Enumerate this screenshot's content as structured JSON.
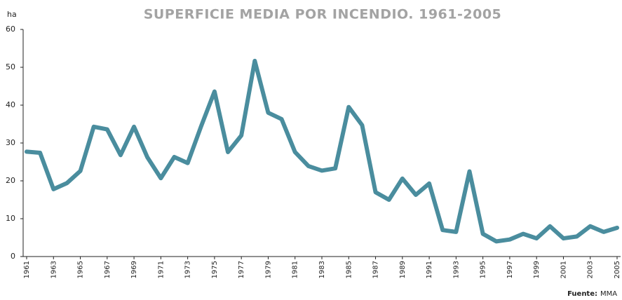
{
  "chart_data": {
    "type": "line",
    "title": "SUPERFICIE MEDIA POR INCENDIO. 1961-2005",
    "y_label": "ha",
    "source_label": "Fuente:",
    "source": "MMA",
    "x": [
      1961,
      1962,
      1963,
      1964,
      1965,
      1966,
      1967,
      1968,
      1969,
      1970,
      1971,
      1972,
      1973,
      1974,
      1975,
      1976,
      1977,
      1978,
      1979,
      1980,
      1981,
      1982,
      1983,
      1984,
      1985,
      1986,
      1987,
      1988,
      1989,
      1990,
      1991,
      1992,
      1993,
      1994,
      1995,
      1996,
      1997,
      1998,
      1999,
      2000,
      2001,
      2002,
      2003,
      2004,
      2005
    ],
    "series": [
      {
        "name": "ha",
        "color": "#4a8d9e",
        "values": [
          27.7,
          27.4,
          17.8,
          19.4,
          22.6,
          34.3,
          33.6,
          26.8,
          34.3,
          26.2,
          20.7,
          26.3,
          24.7,
          34.4,
          43.6,
          27.6,
          32.0,
          51.7,
          38.0,
          36.3,
          27.6,
          23.9,
          22.7,
          23.3,
          39.5,
          34.7,
          17.0,
          15.0,
          20.6,
          16.3,
          19.3,
          7.0,
          6.5,
          22.5,
          6.0,
          4.0,
          4.5,
          6.0,
          4.8,
          8.0,
          4.8,
          5.3,
          8.0,
          6.5,
          7.6
        ]
      }
    ],
    "xlim": [
      1961,
      2005
    ],
    "xticks": [
      1961,
      1963,
      1965,
      1967,
      1969,
      1971,
      1973,
      1975,
      1977,
      1979,
      1981,
      1983,
      1985,
      1987,
      1989,
      1991,
      1993,
      1995,
      1997,
      1999,
      2001,
      2003,
      2005
    ],
    "ylim": [
      0,
      60
    ],
    "yticks": [
      0,
      10,
      20,
      30,
      40,
      50,
      60
    ]
  }
}
